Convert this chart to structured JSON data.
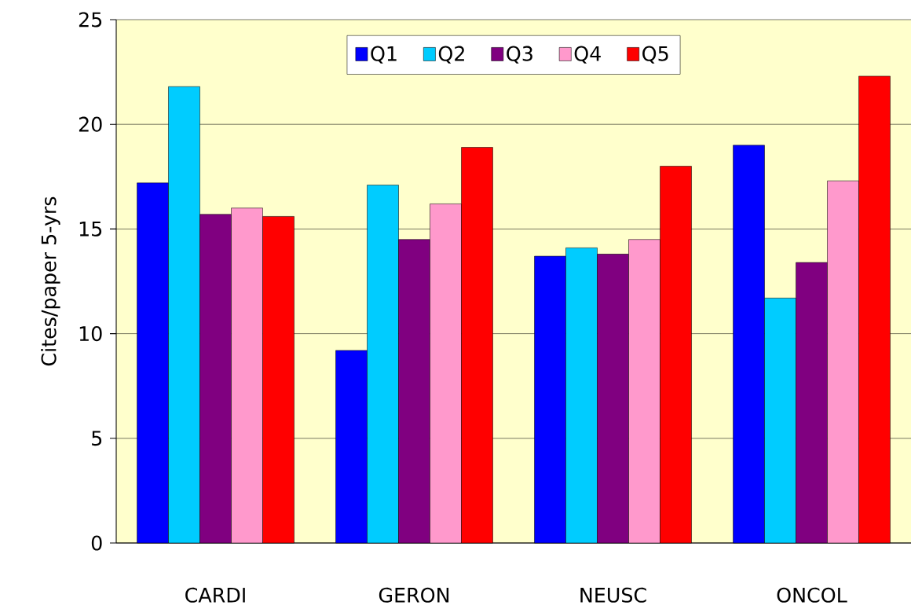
{
  "chart_data": {
    "type": "bar",
    "ylabel": "Cites/paper 5-yrs",
    "categories": [
      "CARDI",
      "GERON",
      "NEUSC",
      "ONCOL"
    ],
    "series": [
      {
        "name": "Q1",
        "color": "#0000ff",
        "values": [
          17.2,
          9.2,
          13.7,
          19.0
        ]
      },
      {
        "name": "Q2",
        "color": "#00ccff",
        "values": [
          21.8,
          17.1,
          14.1,
          11.7
        ]
      },
      {
        "name": "Q3",
        "color": "#800080",
        "values": [
          15.7,
          14.5,
          13.8,
          13.4
        ]
      },
      {
        "name": "Q4",
        "color": "#ff99cc",
        "values": [
          16.0,
          16.2,
          14.5,
          17.3
        ]
      },
      {
        "name": "Q5",
        "color": "#ff0000",
        "values": [
          15.6,
          18.9,
          18.0,
          22.3
        ]
      }
    ],
    "ylim": [
      0,
      25
    ],
    "yticks": [
      0,
      5,
      10,
      15,
      20,
      25
    ],
    "grid": "y",
    "legend": "top"
  }
}
